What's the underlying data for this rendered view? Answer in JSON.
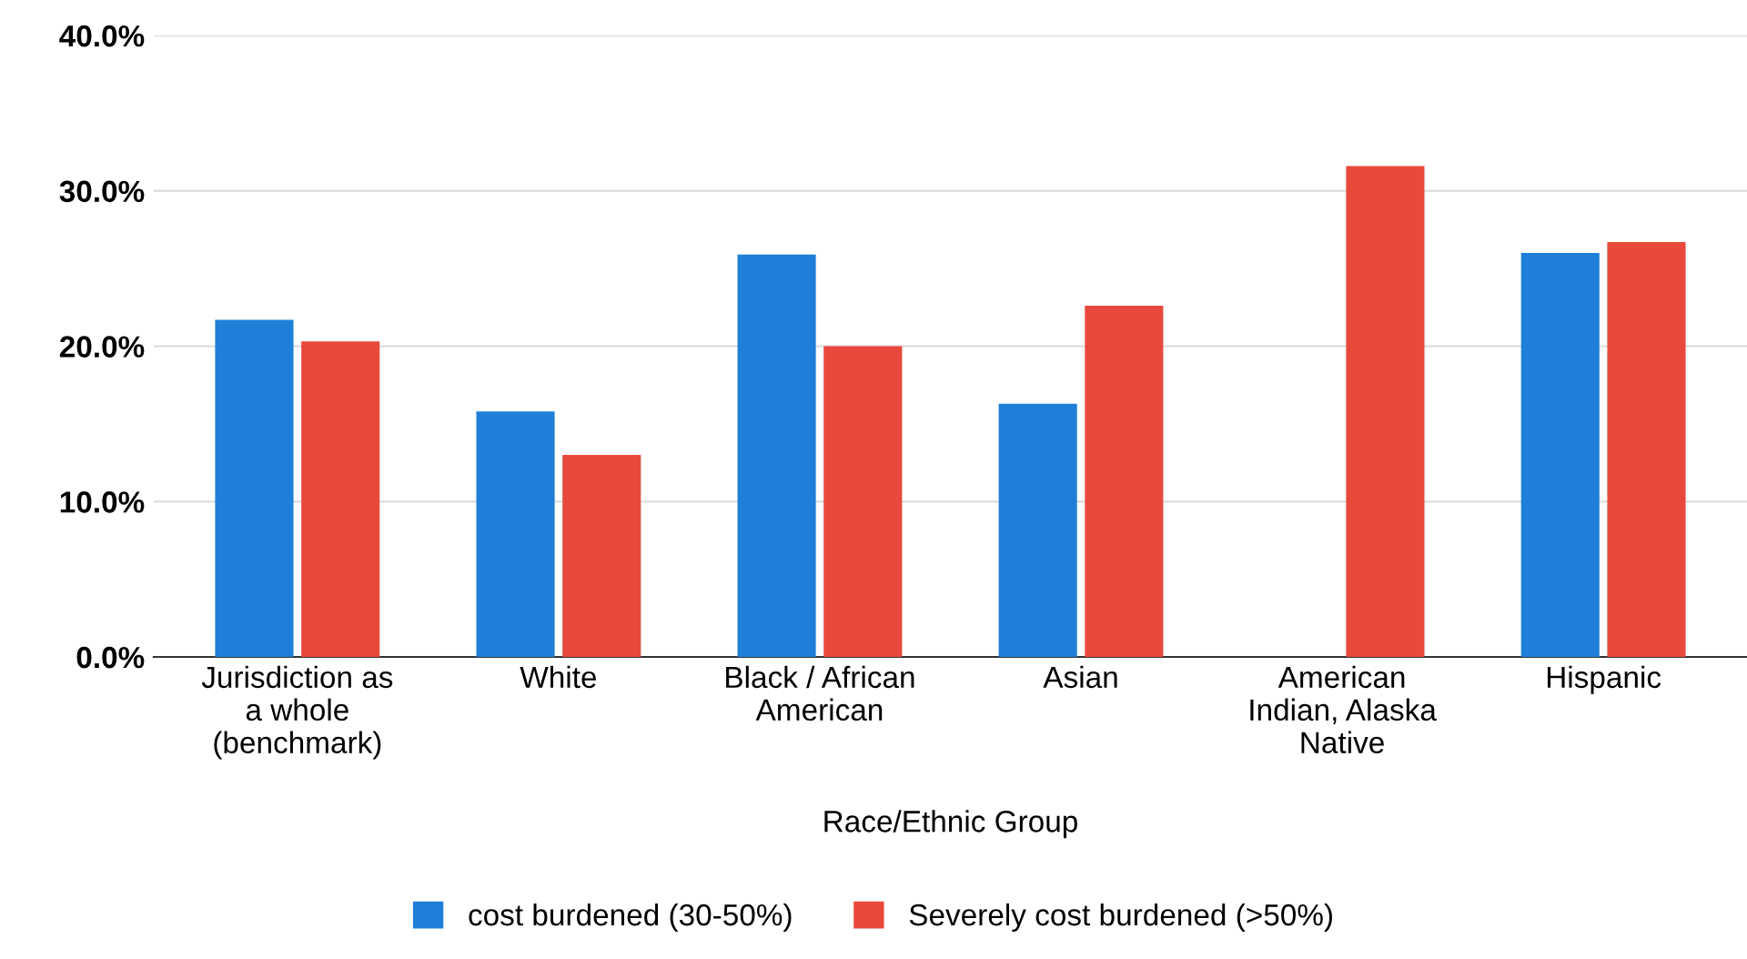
{
  "chart_data": {
    "type": "bar",
    "xlabel": "Race/Ethnic Group",
    "categories": [
      "Jurisdiction as\na whole\n(benchmark)",
      "White",
      "Black / African\nAmerican",
      "Asian",
      "American\nIndian, Alaska\nNative",
      "Hispanic"
    ],
    "series": [
      {
        "name": "cost burdened (30-50%)",
        "color": "#1f7fd8",
        "values": [
          21.7,
          15.8,
          25.9,
          16.3,
          null,
          26.0
        ]
      },
      {
        "name": "Severely cost burdened (>50%)",
        "color": "#e8493c",
        "values": [
          20.3,
          13.0,
          20.0,
          22.6,
          31.6,
          26.7
        ]
      }
    ],
    "ylim": [
      0,
      40
    ],
    "yticks": [
      {
        "value": 0,
        "label": "0.0%"
      },
      {
        "value": 10,
        "label": "10.0%"
      },
      {
        "value": 20,
        "label": "20.0%"
      },
      {
        "value": 30,
        "label": "30.0%"
      },
      {
        "value": 40,
        "label": "40.0%"
      }
    ],
    "grid": "y",
    "legend": "bottom"
  }
}
